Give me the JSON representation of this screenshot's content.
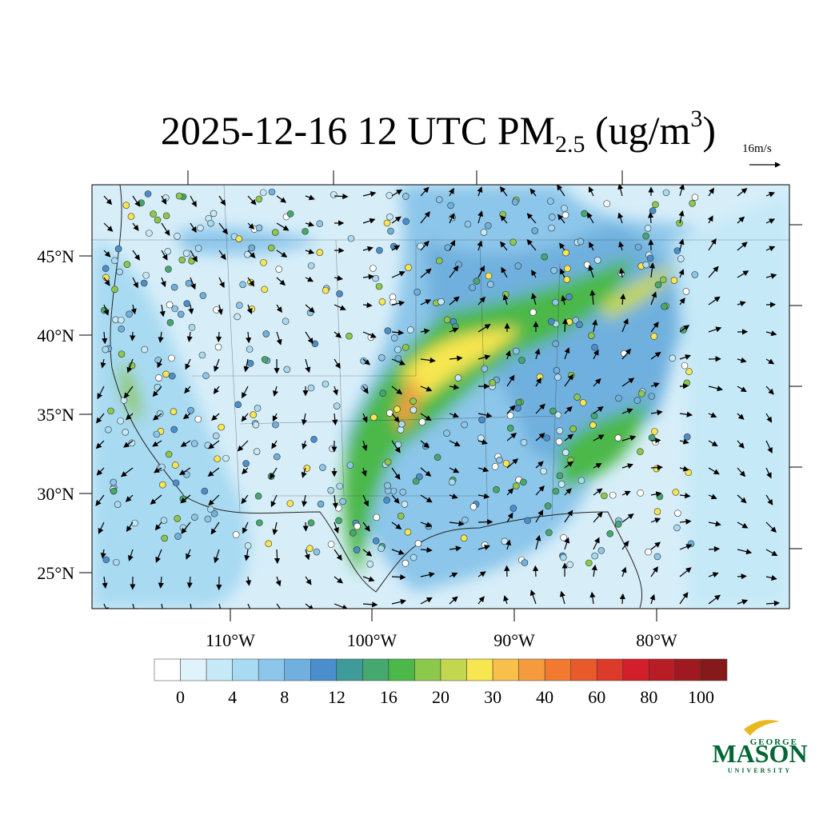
{
  "title": {
    "main": "2025-12-16 12 UTC PM",
    "sub": "2.5",
    "unit_open": " (ug/m",
    "sup": "3",
    "unit_close": ")"
  },
  "vector_reference": "16m/s",
  "map": {
    "lat_labels": [
      "45°N",
      "40°N",
      "35°N",
      "30°N",
      "25°N"
    ],
    "lon_labels": [
      "110°W",
      "100°W",
      "90°W",
      "80°W"
    ]
  },
  "colorbar": {
    "labels": [
      0,
      4,
      8,
      12,
      16,
      20,
      30,
      40,
      60,
      80,
      100
    ],
    "colors": [
      "#ffffff",
      "#e0f3fb",
      "#c6e9f7",
      "#a8daf2",
      "#8cc6ea",
      "#6fb0de",
      "#4a8fcc",
      "#3f9b9a",
      "#45a86e",
      "#4cb84a",
      "#8cc84b",
      "#c3d650",
      "#f7e64f",
      "#f8c04a",
      "#f59b3e",
      "#f27a30",
      "#e85a2b",
      "#dc3a2a",
      "#d21f2b",
      "#b81c25",
      "#9f1a20",
      "#861a1b"
    ]
  },
  "logo": {
    "top": "GEORGE",
    "main": "MASON",
    "bottom": "UNIVERSITY"
  }
}
